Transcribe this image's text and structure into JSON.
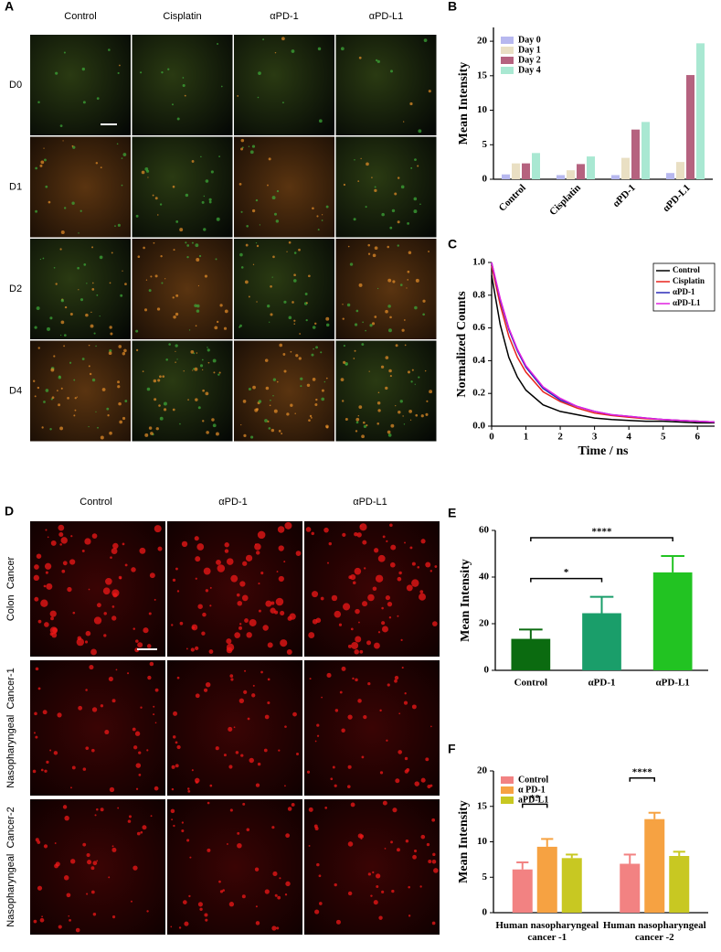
{
  "panel_a": {
    "label": "A",
    "columns": [
      "Control",
      "Cisplatin",
      "αPD-1",
      "αPD-L1"
    ],
    "rows": [
      "D0",
      "D1",
      "D2",
      "D4"
    ]
  },
  "panel_d": {
    "label": "D",
    "columns": [
      "Control",
      "αPD-1",
      "αPD-L1"
    ],
    "rows": [
      "Colon  Cancer",
      "Nasopharyngeal  Cancer-1",
      "Nasopharyngeal  Cancer-2"
    ]
  },
  "chart_data": [
    {
      "panel": "B",
      "type": "bar",
      "ylabel": "Mean Intensity",
      "categories": [
        "Control",
        "Cisplatin",
        "αPD-1",
        "αPD-L1"
      ],
      "series": [
        {
          "name": "Day 0",
          "color": "#b7b8ef",
          "values": [
            0.7,
            0.6,
            0.6,
            0.9
          ]
        },
        {
          "name": "Day 1",
          "color": "#e9dfc3",
          "values": [
            2.3,
            1.3,
            3.1,
            2.5
          ]
        },
        {
          "name": "Day 2",
          "color": "#b5627f",
          "values": [
            2.3,
            2.2,
            7.2,
            15.1
          ]
        },
        {
          "name": "Day 4",
          "color": "#a9e8d2",
          "values": [
            3.8,
            3.3,
            8.3,
            19.7
          ]
        }
      ],
      "ylim": [
        0,
        22
      ],
      "yticks": [
        0,
        5,
        10,
        15,
        20
      ],
      "legend": "upper-left"
    },
    {
      "panel": "C",
      "type": "line",
      "xlabel": "Time / ns",
      "ylabel": "Normalized Counts",
      "x": [
        0,
        0.25,
        0.5,
        0.75,
        1,
        1.5,
        2,
        2.5,
        3,
        3.5,
        4,
        4.5,
        5,
        5.5,
        6,
        6.5
      ],
      "series": [
        {
          "name": "Control",
          "color": "#000000",
          "values": [
            0.92,
            0.62,
            0.42,
            0.3,
            0.22,
            0.13,
            0.09,
            0.07,
            0.05,
            0.04,
            0.035,
            0.03,
            0.03,
            0.025,
            0.02,
            0.02
          ]
        },
        {
          "name": "Cisplatin",
          "color": "#e8221c",
          "values": [
            0.98,
            0.74,
            0.55,
            0.42,
            0.33,
            0.21,
            0.15,
            0.11,
            0.08,
            0.065,
            0.055,
            0.045,
            0.04,
            0.035,
            0.03,
            0.025
          ]
        },
        {
          "name": "αPD-1",
          "color": "#2a2ab8",
          "values": [
            1.0,
            0.77,
            0.59,
            0.46,
            0.36,
            0.23,
            0.16,
            0.12,
            0.09,
            0.07,
            0.06,
            0.05,
            0.04,
            0.035,
            0.03,
            0.025
          ]
        },
        {
          "name": "αPD-L1",
          "color": "#e020e0",
          "values": [
            1.0,
            0.78,
            0.6,
            0.47,
            0.37,
            0.24,
            0.17,
            0.12,
            0.09,
            0.07,
            0.06,
            0.05,
            0.04,
            0.035,
            0.03,
            0.025
          ]
        }
      ],
      "xlim": [
        0,
        6.5
      ],
      "xticks": [
        0,
        1,
        2,
        3,
        4,
        5,
        6
      ],
      "ylim": [
        0,
        1
      ],
      "yticks": [
        {
          "value": 0,
          "label": "0.0"
        },
        0.2,
        0.4,
        0.6,
        0.8,
        {
          "value": 1,
          "label": "1.0"
        }
      ],
      "legend": "upper-right"
    },
    {
      "panel": "E",
      "type": "bar",
      "ylabel": "Mean Intensity",
      "categories": [
        "Control",
        "αPD-1",
        "αPD-L1"
      ],
      "values": [
        13.5,
        24.5,
        42
      ],
      "errors": [
        4,
        7,
        7
      ],
      "colors": [
        "#0b6b10",
        "#1a9e6a",
        "#22c322"
      ],
      "ylim": [
        0,
        60
      ],
      "yticks": [
        0,
        20,
        40,
        60
      ],
      "significance": [
        {
          "label": "*",
          "between": [
            "Control",
            "αPD-1"
          ]
        },
        {
          "label": "****",
          "between": [
            "Control",
            "αPD-L1"
          ]
        }
      ]
    },
    {
      "panel": "F",
      "type": "bar",
      "ylabel": "Mean Intensity",
      "categories": [
        [
          "Human nasopharyngeal",
          "cancer -1"
        ],
        [
          "Human nasopharyngeal",
          "cancer -2"
        ]
      ],
      "series": [
        {
          "name": "Control",
          "color": "#f28282",
          "values": [
            6.1,
            6.9
          ],
          "errors": [
            1.0,
            1.3
          ]
        },
        {
          "name": "α PD-1",
          "color": "#f6a242",
          "values": [
            9.3,
            13.2
          ],
          "errors": [
            1.1,
            0.9
          ]
        },
        {
          "name": "aPD-L1",
          "color": "#c8c822",
          "values": [
            7.7,
            8.0
          ],
          "errors": [
            0.5,
            0.6
          ]
        }
      ],
      "ylim": [
        0,
        20
      ],
      "yticks": [
        0,
        5,
        10,
        15,
        20
      ],
      "legend": "upper-left",
      "significance": [
        {
          "label": "**",
          "group": 0,
          "between": [
            "Control",
            "α PD-1"
          ]
        },
        {
          "label": "****",
          "group": 1,
          "between": [
            "Control",
            "α PD-1"
          ]
        }
      ]
    }
  ]
}
